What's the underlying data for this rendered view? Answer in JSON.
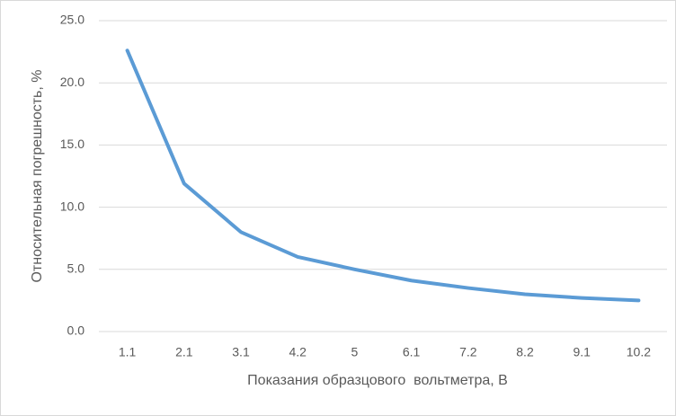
{
  "chart_data": {
    "type": "line",
    "x_label": "Показания образцового  вольтметра, В",
    "y_label": "Относительная погрешность, %",
    "categories": [
      "1.1",
      "2.1",
      "3.1",
      "4.2",
      "5",
      "6.1",
      "7.2",
      "8.2",
      "9.1",
      "10.2"
    ],
    "series": [
      {
        "name": "Относительная погрешность",
        "color": "#5b9bd5",
        "values": [
          22.6,
          11.9,
          8.0,
          6.0,
          5.0,
          4.1,
          3.5,
          3.0,
          2.7,
          2.5
        ]
      }
    ],
    "ylim": [
      0,
      25
    ],
    "yticks": [
      {
        "value": 0,
        "label": "0.0"
      },
      {
        "value": 5,
        "label": "5.0"
      },
      {
        "value": 10,
        "label": "10.0"
      },
      {
        "value": 15,
        "label": "15.0"
      },
      {
        "value": 20,
        "label": "20.0"
      },
      {
        "value": 25,
        "label": "25.0"
      }
    ],
    "grid": true
  }
}
